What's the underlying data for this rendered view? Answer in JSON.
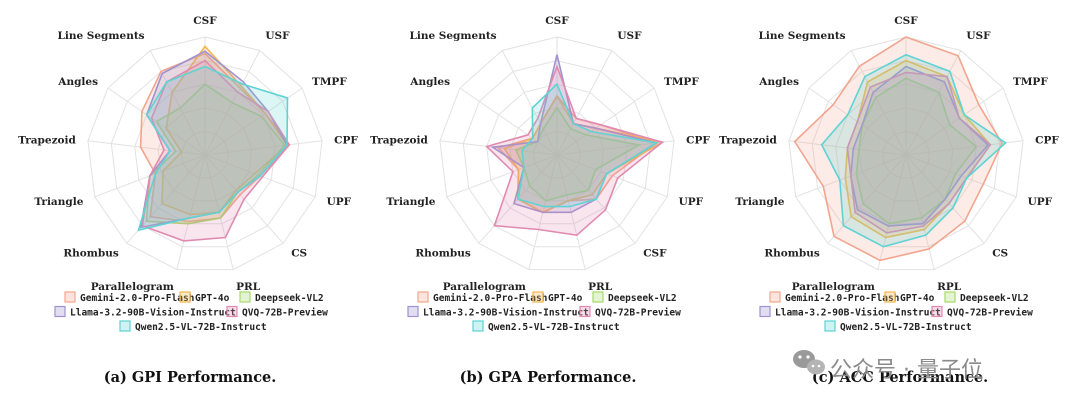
{
  "watermark": {
    "text": "公众号 · 量子位",
    "icon": "wechat-icon"
  },
  "chart_data": [
    {
      "type": "radar",
      "title": "(a) GPI Performance.",
      "axes": [
        "CSF",
        "USF",
        "TMPF",
        "CPF",
        "UPF",
        "CS",
        "PRL",
        "Parallelogram",
        "Rhombus",
        "Triangle",
        "Trapezoid",
        "Angles",
        "Line Segments"
      ],
      "rmax": 1,
      "series": [
        {
          "name": "Gemini-2.0-Pro-Flash",
          "color": "#f2a58e",
          "values": [
            0.86,
            0.64,
            0.62,
            0.72,
            0.5,
            0.45,
            0.55,
            0.58,
            0.7,
            0.45,
            0.55,
            0.65,
            0.8
          ]
        },
        {
          "name": "GPT-4o",
          "color": "#f5b64f",
          "values": [
            0.92,
            0.66,
            0.62,
            0.7,
            0.45,
            0.4,
            0.5,
            0.52,
            0.55,
            0.38,
            0.2,
            0.4,
            0.6
          ]
        },
        {
          "name": "Deepseek-VL2",
          "color": "#a6d96a",
          "values": [
            0.6,
            0.5,
            0.58,
            0.68,
            0.48,
            0.42,
            0.55,
            0.6,
            0.75,
            0.5,
            0.25,
            0.5,
            0.45
          ]
        },
        {
          "name": "Llama-3.2-90B-Vision-Instruct",
          "color": "#9f93cf",
          "values": [
            0.88,
            0.7,
            0.65,
            0.7,
            0.5,
            0.42,
            0.5,
            0.55,
            0.82,
            0.5,
            0.3,
            0.6,
            0.78
          ]
        },
        {
          "name": "QVQ-72B-Preview",
          "color": "#e08ab0",
          "values": [
            0.8,
            0.6,
            0.65,
            0.72,
            0.52,
            0.5,
            0.72,
            0.75,
            0.8,
            0.5,
            0.35,
            0.55,
            0.7
          ]
        },
        {
          "name": "Qwen2.5-VL-72B-Instruct",
          "color": "#5fd3d3",
          "values": [
            0.75,
            0.68,
            0.85,
            0.7,
            0.5,
            0.42,
            0.5,
            0.55,
            0.85,
            0.45,
            0.3,
            0.6,
            0.7
          ]
        }
      ]
    },
    {
      "type": "radar",
      "title": "(b) GPA Performance.",
      "axes": [
        "CSF",
        "USF",
        "TMPF",
        "CPF",
        "UPF",
        "CSF",
        "PRL",
        "Parallelogram",
        "Rhombus",
        "Triangle",
        "Trapezoid",
        "Angles",
        "Line Segments"
      ],
      "rmax": 1,
      "series": [
        {
          "name": "Gemini-2.0-Pro-Flash",
          "color": "#f2a58e",
          "values": [
            0.5,
            0.35,
            0.45,
            0.85,
            0.5,
            0.5,
            0.4,
            0.5,
            0.5,
            0.35,
            0.5,
            0.25,
            0.3
          ]
        },
        {
          "name": "GPT-4o",
          "color": "#f5b64f",
          "values": [
            0.5,
            0.3,
            0.4,
            0.9,
            0.45,
            0.45,
            0.4,
            0.5,
            0.5,
            0.35,
            0.45,
            0.25,
            0.3
          ]
        },
        {
          "name": "Deepseek-VL2",
          "color": "#a6d96a",
          "values": [
            0.4,
            0.25,
            0.3,
            0.7,
            0.35,
            0.4,
            0.35,
            0.4,
            0.35,
            0.3,
            0.35,
            0.2,
            0.25
          ]
        },
        {
          "name": "Llama-3.2-90B-Vision-Instruct",
          "color": "#9f93cf",
          "values": [
            0.85,
            0.3,
            0.4,
            0.85,
            0.45,
            0.5,
            0.5,
            0.5,
            0.55,
            0.3,
            0.55,
            0.2,
            0.3
          ]
        },
        {
          "name": "QVQ-72B-Preview",
          "color": "#e08ab0",
          "values": [
            0.75,
            0.35,
            0.45,
            0.9,
            0.55,
            0.62,
            0.7,
            0.65,
            0.8,
            0.4,
            0.6,
            0.3,
            0.35
          ]
        },
        {
          "name": "Qwen2.5-VL-72B-Instruct",
          "color": "#5fd3d3",
          "values": [
            0.6,
            0.3,
            0.35,
            0.85,
            0.45,
            0.5,
            0.45,
            0.45,
            0.5,
            0.3,
            0.3,
            0.25,
            0.45
          ]
        }
      ]
    },
    {
      "type": "radar",
      "title": "(c) ACC Performance.",
      "axes": [
        "CSF",
        "USF",
        "TMPF",
        "CPF",
        "UPF",
        "CS",
        "RPL",
        "Parallelogram",
        "Rhombus",
        "Triangle",
        "Trapezoid",
        "Angles",
        "Line Segments"
      ],
      "rmax": 1,
      "series": [
        {
          "name": "Gemini-2.0-Pro-Flash",
          "color": "#f2a58e",
          "values": [
            1.0,
            0.95,
            0.75,
            0.82,
            0.7,
            0.75,
            0.82,
            0.92,
            0.92,
            0.75,
            0.95,
            0.75,
            0.85
          ]
        },
        {
          "name": "GPT-4o",
          "color": "#f5b64f",
          "values": [
            0.8,
            0.75,
            0.6,
            0.72,
            0.55,
            0.55,
            0.65,
            0.72,
            0.7,
            0.55,
            0.5,
            0.5,
            0.7
          ]
        },
        {
          "name": "Deepseek-VL2",
          "color": "#a6d96a",
          "values": [
            0.65,
            0.6,
            0.45,
            0.6,
            0.45,
            0.5,
            0.55,
            0.6,
            0.55,
            0.45,
            0.4,
            0.45,
            0.55
          ]
        },
        {
          "name": "Llama-3.2-90B-Vision-Instruct",
          "color": "#9f93cf",
          "values": [
            0.75,
            0.7,
            0.55,
            0.7,
            0.5,
            0.5,
            0.6,
            0.62,
            0.62,
            0.5,
            0.45,
            0.45,
            0.6
          ]
        },
        {
          "name": "QVQ-72B-Preview",
          "color": "#e08ab0",
          "values": [
            0.7,
            0.75,
            0.55,
            0.72,
            0.55,
            0.55,
            0.62,
            0.68,
            0.65,
            0.5,
            0.5,
            0.5,
            0.65
          ]
        },
        {
          "name": "Qwen2.5-VL-72B-Instruct",
          "color": "#5fd3d3",
          "values": [
            0.85,
            0.8,
            0.6,
            0.85,
            0.55,
            0.6,
            0.7,
            0.8,
            0.8,
            0.6,
            0.72,
            0.6,
            0.75
          ]
        }
      ]
    }
  ]
}
